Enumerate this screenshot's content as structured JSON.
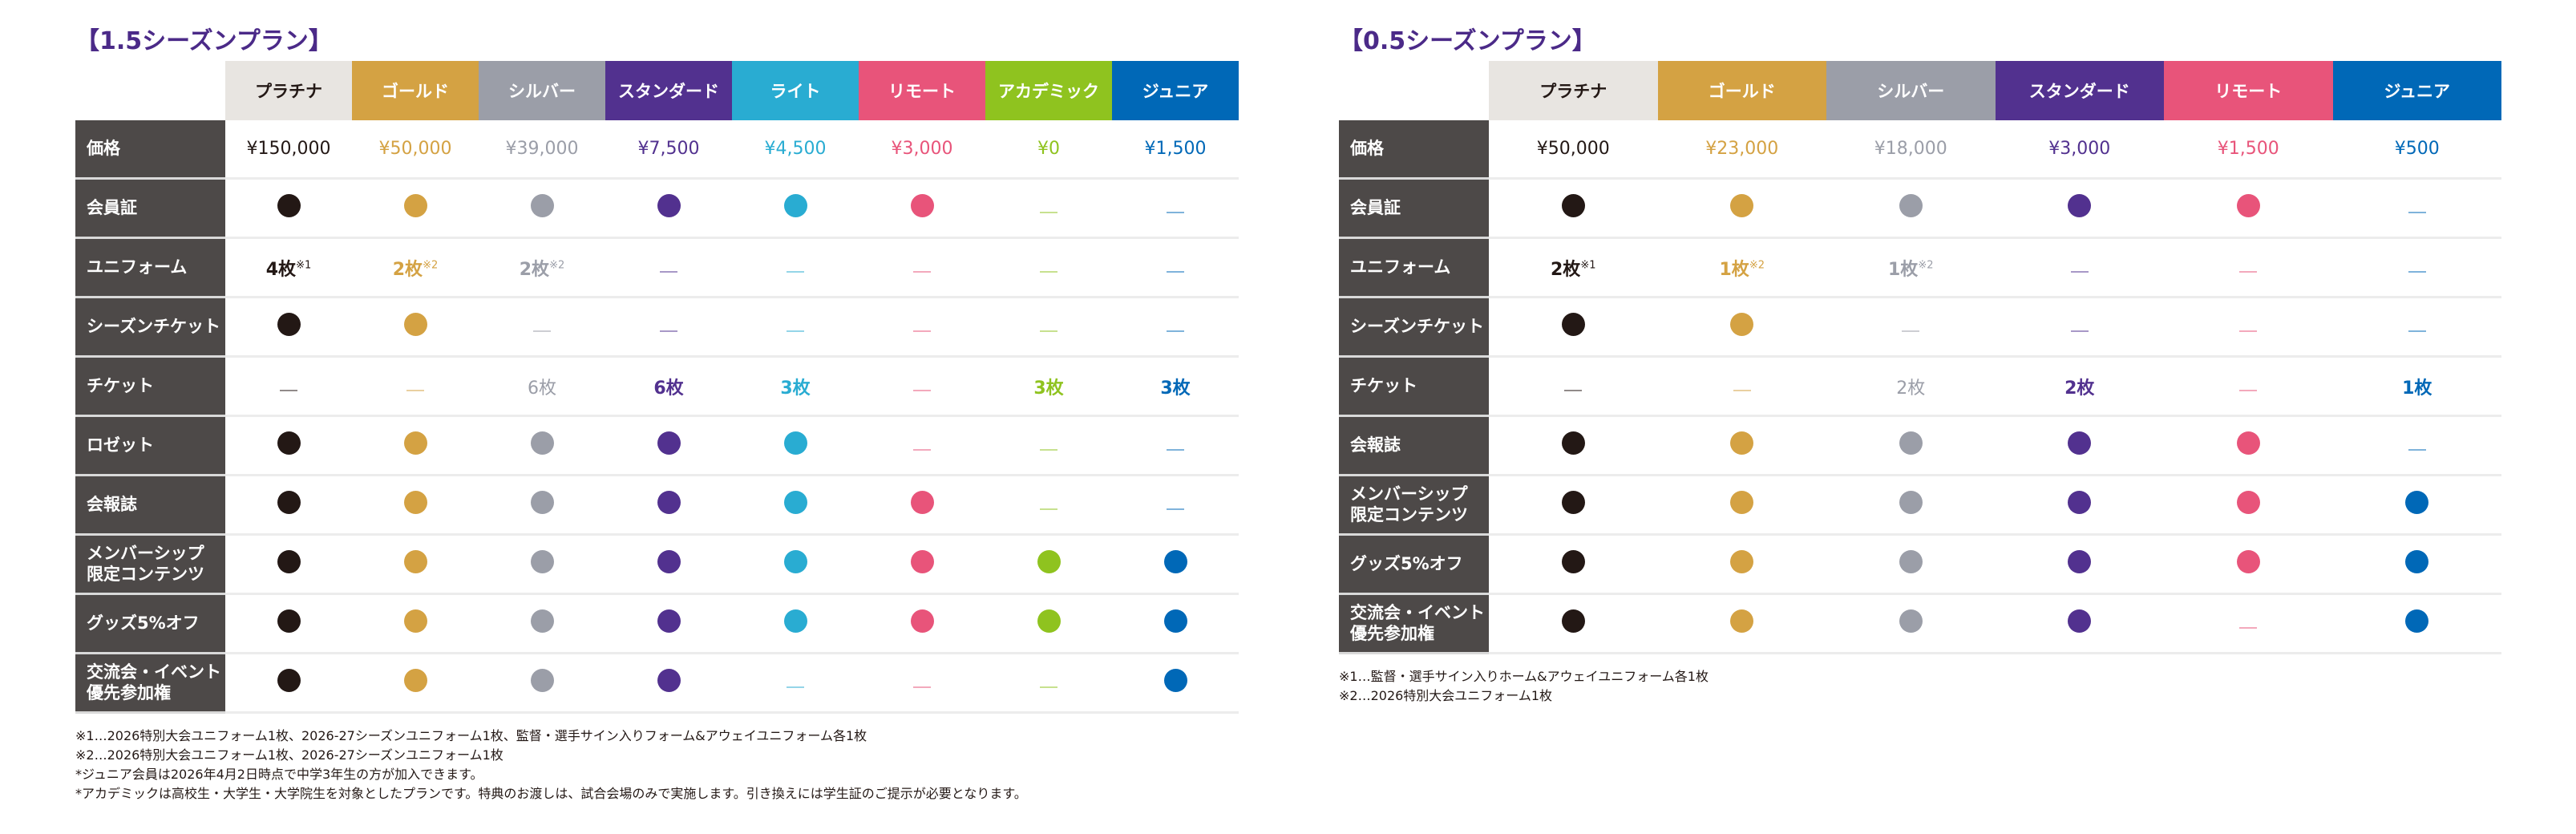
{
  "plans": [
    {
      "title": "【1.5シーズンプラン】",
      "columns": [
        {
          "label": "プラチナ",
          "bg": "#e8e5e1",
          "head_text": "#231815",
          "color": "#231815"
        },
        {
          "label": "ゴールド",
          "bg": "#d4a243",
          "head_text": "#ffffff",
          "color": "#d4a243"
        },
        {
          "label": "シルバー",
          "bg": "#9b9ea8",
          "head_text": "#ffffff",
          "color": "#9b9ea8"
        },
        {
          "label": "スタンダード",
          "bg": "#52318f",
          "head_text": "#ffffff",
          "color": "#52318f"
        },
        {
          "label": "ライト",
          "bg": "#29acd2",
          "head_text": "#ffffff",
          "color": "#29acd2"
        },
        {
          "label": "リモート",
          "bg": "#e8547a",
          "head_text": "#ffffff",
          "color": "#e8547a"
        },
        {
          "label": "アカデミック",
          "bg": "#8fc31f",
          "head_text": "#ffffff",
          "color": "#8fc31f"
        },
        {
          "label": "ジュニア",
          "bg": "#0068b7",
          "head_text": "#ffffff",
          "color": "#0068b7"
        }
      ],
      "rows": [
        {
          "label": "価格",
          "cells": [
            "¥150,000",
            "¥50,000",
            "¥39,000",
            "¥7,500",
            "¥4,500",
            "¥3,000",
            "¥0",
            "¥1,500"
          ]
        },
        {
          "label": "会員証",
          "cells": [
            "dot",
            "dot",
            "dot",
            "dot",
            "dot",
            "dot",
            "-",
            "-"
          ]
        },
        {
          "label": "ユニフォーム",
          "cells": [
            {
              "text": "4枚",
              "note": "※1"
            },
            {
              "text": "2枚",
              "note": "※2"
            },
            {
              "text": "2枚",
              "note": "※2"
            },
            "-",
            "-",
            "-",
            "-",
            "-"
          ]
        },
        {
          "label": "シーズンチケット",
          "cells": [
            "dot",
            "dot",
            "-",
            "-",
            "-",
            "-",
            "-",
            "-"
          ]
        },
        {
          "label": "チケット",
          "cells": [
            "-",
            "-",
            "6枚",
            "6枚",
            "3枚",
            "-",
            "3枚",
            "3枚"
          ]
        },
        {
          "label": "ロゼット",
          "cells": [
            "dot",
            "dot",
            "dot",
            "dot",
            "dot",
            "-",
            "-",
            "-"
          ]
        },
        {
          "label": "会報誌",
          "cells": [
            "dot",
            "dot",
            "dot",
            "dot",
            "dot",
            "dot",
            "-",
            "-"
          ]
        },
        {
          "label": "メンバーシップ\n限定コンテンツ",
          "cells": [
            "dot",
            "dot",
            "dot",
            "dot",
            "dot",
            "dot",
            "dot",
            "dot"
          ]
        },
        {
          "label": "グッズ5%オフ",
          "cells": [
            "dot",
            "dot",
            "dot",
            "dot",
            "dot",
            "dot",
            "dot",
            "dot"
          ]
        },
        {
          "label": "交流会・イベント\n優先参加権",
          "cells": [
            "dot",
            "dot",
            "dot",
            "dot",
            "-",
            "-",
            "-",
            "dot"
          ]
        }
      ],
      "notes": [
        "※1…2026特別大会ユニフォーム1枚、2026-27シーズンユニフォーム1枚、監督・選手サイン入りフォーム&アウェイユニフォーム各1枚",
        "※2…2026特別大会ユニフォーム1枚、2026-27シーズンユニフォーム1枚",
        "*ジュニア会員は2026年4月2日時点で中学3年生の方が加入できます。",
        "*アカデミックは高校生・大学生・大学院生を対象としたプランです。特典のお渡しは、試合会場のみで実施します。引き換えには学生証のご提示が必要となります。"
      ]
    },
    {
      "title": "【0.5シーズンプラン】",
      "columns": [
        {
          "label": "プラチナ",
          "bg": "#e8e5e1",
          "head_text": "#231815",
          "color": "#231815"
        },
        {
          "label": "ゴールド",
          "bg": "#d4a243",
          "head_text": "#ffffff",
          "color": "#d4a243"
        },
        {
          "label": "シルバー",
          "bg": "#9b9ea8",
          "head_text": "#ffffff",
          "color": "#9b9ea8"
        },
        {
          "label": "スタンダード",
          "bg": "#52318f",
          "head_text": "#ffffff",
          "color": "#52318f"
        },
        {
          "label": "リモート",
          "bg": "#e8547a",
          "head_text": "#ffffff",
          "color": "#e8547a"
        },
        {
          "label": "ジュニア",
          "bg": "#0068b7",
          "head_text": "#ffffff",
          "color": "#0068b7"
        }
      ],
      "rows": [
        {
          "label": "価格",
          "cells": [
            "¥50,000",
            "¥23,000",
            "¥18,000",
            "¥3,000",
            "¥1,500",
            "¥500"
          ]
        },
        {
          "label": "会員証",
          "cells": [
            "dot",
            "dot",
            "dot",
            "dot",
            "dot",
            "-"
          ]
        },
        {
          "label": "ユニフォーム",
          "cells": [
            {
              "text": "2枚",
              "note": "※1"
            },
            {
              "text": "1枚",
              "note": "※2"
            },
            {
              "text": "1枚",
              "note": "※2"
            },
            "-",
            "-",
            "-"
          ]
        },
        {
          "label": "シーズンチケット",
          "cells": [
            "dot",
            "dot",
            "-",
            "-",
            "-",
            "-"
          ]
        },
        {
          "label": "チケット",
          "cells": [
            "-",
            "-",
            "2枚",
            "2枚",
            "-",
            "1枚"
          ]
        },
        {
          "label": "会報誌",
          "cells": [
            "dot",
            "dot",
            "dot",
            "dot",
            "dot",
            "-"
          ]
        },
        {
          "label": "メンバーシップ\n限定コンテンツ",
          "cells": [
            "dot",
            "dot",
            "dot",
            "dot",
            "dot",
            "dot"
          ]
        },
        {
          "label": "グッズ5%オフ",
          "cells": [
            "dot",
            "dot",
            "dot",
            "dot",
            "dot",
            "dot"
          ]
        },
        {
          "label": "交流会・イベント\n優先参加権",
          "cells": [
            "dot",
            "dot",
            "dot",
            "dot",
            "-",
            "dot"
          ]
        }
      ],
      "notes": [
        "※1…監督・選手サイン入りホーム&アウェイユニフォーム各1枚",
        "※2…2026特別大会ユニフォーム1枚"
      ]
    }
  ]
}
